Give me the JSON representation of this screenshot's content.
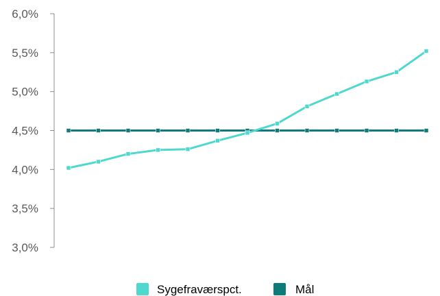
{
  "chart_data": {
    "type": "line",
    "title": "",
    "xlabel": "",
    "ylabel": "",
    "ylim": [
      0.03,
      0.06
    ],
    "yticks": [
      {
        "value": 0.06,
        "label": "6,0%"
      },
      {
        "value": 0.055,
        "label": "5,5%"
      },
      {
        "value": 0.05,
        "label": "5,0%"
      },
      {
        "value": 0.045,
        "label": "4,5%"
      },
      {
        "value": 0.04,
        "label": "4,0%"
      },
      {
        "value": 0.035,
        "label": "3,5%"
      },
      {
        "value": 0.03,
        "label": "3,0%"
      }
    ],
    "x": [
      1,
      2,
      3,
      4,
      5,
      6,
      7,
      8,
      9,
      10,
      11,
      12,
      13
    ],
    "series": [
      {
        "name": "Sygefraværspct.",
        "color": "#4fd8cd",
        "values": [
          0.0402,
          0.041,
          0.042,
          0.0425,
          0.0426,
          0.0437,
          0.0447,
          0.0459,
          0.0481,
          0.0497,
          0.0513,
          0.0525,
          0.0552
        ]
      },
      {
        "name": "Mål",
        "color": "#0e7a7a",
        "values": [
          0.045,
          0.045,
          0.045,
          0.045,
          0.045,
          0.045,
          0.045,
          0.045,
          0.045,
          0.045,
          0.045,
          0.045,
          0.045
        ]
      }
    ],
    "grid": false,
    "legend_position": "bottom-center"
  }
}
